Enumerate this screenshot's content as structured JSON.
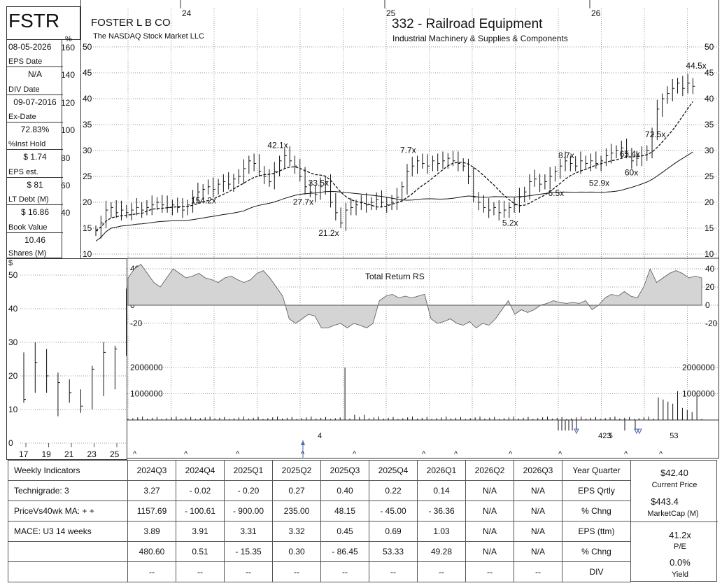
{
  "header": {
    "ticker": "FSTR",
    "company": "FOSTER L B CO",
    "exchange": "The NASDAQ Stock Market LLC",
    "group": "332 - Railroad Equipment",
    "industry": "Industrial Machinery & Supplies & Components",
    "year_labels": [
      "24",
      "25",
      "26"
    ]
  },
  "left_panel": {
    "items": [
      {
        "value": "08-05-2026",
        "key": "EPS Date"
      },
      {
        "value": "N/A",
        "key": "DIV Date"
      },
      {
        "value": "09-07-2016",
        "key": "Ex-Date"
      },
      {
        "value": "72.83%",
        "key": "%Inst Hold"
      },
      {
        "value": "$ 1.74",
        "key": "EPS est."
      },
      {
        "value": "$ 81",
        "key": "LT Debt (M)"
      },
      {
        "value": "$ 16.86",
        "key": "Book Value"
      },
      {
        "value": "10.46",
        "key": "Shares (M)"
      }
    ],
    "pct_symbol": "%",
    "pct_ticks": [
      "160",
      "140",
      "120",
      "100",
      "80",
      "60",
      "40"
    ]
  },
  "chart_data": [
    {
      "type": "line",
      "name": "price-chart",
      "ylim": [
        10,
        50
      ],
      "y_ticks": [
        "50",
        "45",
        "40",
        "35",
        "30",
        "25",
        "20",
        "15",
        "10"
      ],
      "weeks": 120,
      "ohlc_weekly_close": [
        14.5,
        16,
        18.5,
        19,
        18,
        18.5,
        18,
        18.5,
        19,
        18.5,
        19,
        19.5,
        20,
        19.5,
        19,
        19.5,
        19,
        18.5,
        19.5,
        21,
        22,
        22.5,
        23,
        22.5,
        23.5,
        24,
        23.5,
        24.5,
        25,
        26.5,
        28,
        27.5,
        26,
        25,
        24,
        26,
        28,
        29,
        28,
        27,
        25,
        23,
        22,
        21.5,
        23,
        24,
        20,
        18,
        16,
        18.5,
        19,
        19.5,
        20,
        19.5,
        20,
        20.5,
        20,
        19.5,
        20,
        21,
        23,
        26,
        27,
        28,
        27.5,
        27,
        28,
        27.5,
        28,
        28.5,
        28,
        27.5,
        27,
        25,
        21,
        20,
        19,
        18.5,
        19,
        18,
        18.5,
        19,
        19.5,
        21,
        22,
        24,
        24.5,
        23.5,
        24,
        25,
        26,
        27,
        28,
        27.5,
        27,
        28,
        27.5,
        28,
        27.5,
        28,
        29,
        29.5,
        30,
        30.5,
        29.5,
        28,
        28.5,
        29,
        30,
        33,
        38,
        40,
        41,
        42,
        43,
        42,
        43,
        42.4
      ],
      "ma10_note": "dashed",
      "annotations": [
        {
          "text": "42.1x",
          "week": 35,
          "y": 30.5
        },
        {
          "text": "33.5x",
          "week": 43,
          "y": 23.2
        },
        {
          "text": "154.2x",
          "week": 20,
          "y": 19.8
        },
        {
          "text": "27.7x",
          "week": 40,
          "y": 19.5
        },
        {
          "text": "21.2x",
          "week": 45,
          "y": 13.5
        },
        {
          "text": "7.7x",
          "week": 61,
          "y": 29.5
        },
        {
          "text": "5.2x",
          "week": 81,
          "y": 15.5
        },
        {
          "text": "8.7x",
          "week": 92,
          "y": 28.5
        },
        {
          "text": "6.5x",
          "week": 90,
          "y": 21.2
        },
        {
          "text": "52.9x",
          "week": 98,
          "y": 23.2
        },
        {
          "text": "65.4x",
          "week": 104,
          "y": 28.8
        },
        {
          "text": "60x",
          "week": 105,
          "y": 25.2
        },
        {
          "text": "72.5x",
          "week": 109,
          "y": 32.6
        },
        {
          "text": "44.5x",
          "week": 117,
          "y": 45.8
        }
      ]
    },
    {
      "type": "area",
      "name": "total-return-rs",
      "title": "Total Return RS",
      "ylim": [
        -30,
        45
      ],
      "y_ticks": [
        "40",
        "20",
        "0",
        "-20"
      ],
      "values": [
        30,
        40,
        45,
        35,
        25,
        20,
        30,
        40,
        35,
        30,
        32,
        35,
        30,
        28,
        25,
        30,
        32,
        28,
        25,
        28,
        35,
        38,
        30,
        20,
        10,
        -15,
        -20,
        -15,
        -10,
        -12,
        -25,
        -25,
        -22,
        -20,
        -25,
        -20,
        -22,
        -25,
        -20,
        5,
        10,
        12,
        8,
        10,
        8,
        10,
        12,
        -15,
        -20,
        -18,
        -15,
        -20,
        -22,
        -18,
        -25,
        -20,
        -22,
        -15,
        -5,
        5,
        -10,
        -5,
        -8,
        -5,
        0,
        2,
        5,
        3,
        2,
        3,
        2,
        5,
        -5,
        0,
        8,
        12,
        10,
        15,
        10,
        8,
        20,
        40,
        25,
        30,
        35,
        38,
        35,
        30,
        32,
        30
      ]
    },
    {
      "type": "bar",
      "name": "volume",
      "y_ticks": [
        "2000000",
        "1000000"
      ],
      "ylim": [
        0,
        2000000
      ]
    },
    {
      "type": "bar",
      "name": "long-term-price",
      "y_symbol": "$",
      "ylim": [
        0,
        50
      ],
      "y_ticks": [
        "50",
        "40",
        "30",
        "20",
        "10",
        "0"
      ],
      "x_ticks": [
        "17",
        "19",
        "21",
        "23",
        "25"
      ],
      "bars": [
        {
          "low": 12,
          "high": 27,
          "close": 13
        },
        {
          "low": 15,
          "high": 30,
          "close": 24
        },
        {
          "low": 15,
          "high": 28,
          "close": 20
        },
        {
          "low": 8,
          "high": 21,
          "close": 18
        },
        {
          "low": 12,
          "high": 19,
          "close": 15
        },
        {
          "low": 9,
          "high": 16,
          "close": 11
        },
        {
          "low": 10,
          "high": 23,
          "close": 22
        },
        {
          "low": 14,
          "high": 30,
          "close": 27
        },
        {
          "low": 16,
          "high": 29,
          "close": 28
        },
        {
          "low": 26,
          "high": 46,
          "close": 42
        }
      ]
    }
  ],
  "events": {
    "markers_text": [
      {
        "text": "4",
        "week": 44
      },
      {
        "text": "423",
        "week": 99
      },
      {
        "text": "5",
        "week": 101
      },
      {
        "text": "53",
        "week": 113
      }
    ]
  },
  "indicators": {
    "headers": [
      "Weekly Indicators",
      "2024Q3",
      "2024Q4",
      "2025Q1",
      "2025Q2",
      "2025Q3",
      "2025Q4",
      "2026Q1",
      "2026Q2",
      "2026Q3",
      "Year Quarter"
    ],
    "rows": [
      [
        "Technigrade: 3",
        "3.27",
        "- 0.02",
        "- 0.20",
        "0.27",
        "0.40",
        "0.22",
        "0.14",
        "N/A",
        "N/A",
        "EPS Qrtly"
      ],
      [
        "PriceVs40wk MA:  + +",
        "1157.69",
        "- 100.61",
        "- 900.00",
        "235.00",
        "48.15",
        "- 45.00",
        "- 36.36",
        "N/A",
        "N/A",
        "% Chng"
      ],
      [
        "MACE: U3  14 weeks",
        "3.89",
        "3.91",
        "3.31",
        "3.32",
        "0.45",
        "0.69",
        "1.03",
        "N/A",
        "N/A",
        "EPS (ttm)"
      ],
      [
        "",
        "480.60",
        "0.51",
        "- 15.35",
        "0.30",
        "- 86.45",
        "53.33",
        "49.28",
        "N/A",
        "N/A",
        "% Chng"
      ],
      [
        "",
        "--",
        "--",
        "--",
        "--",
        "--",
        "--",
        "--",
        "--",
        "--",
        "DIV"
      ]
    ]
  },
  "summary": {
    "price": "$42.40",
    "price_label": "Current Price",
    "mcap": "$443.4",
    "mcap_label": "MarketCap (M)",
    "pe": "41.2x",
    "pe_label": "P/E",
    "yield": "0.0%",
    "yield_label": "Yield"
  }
}
